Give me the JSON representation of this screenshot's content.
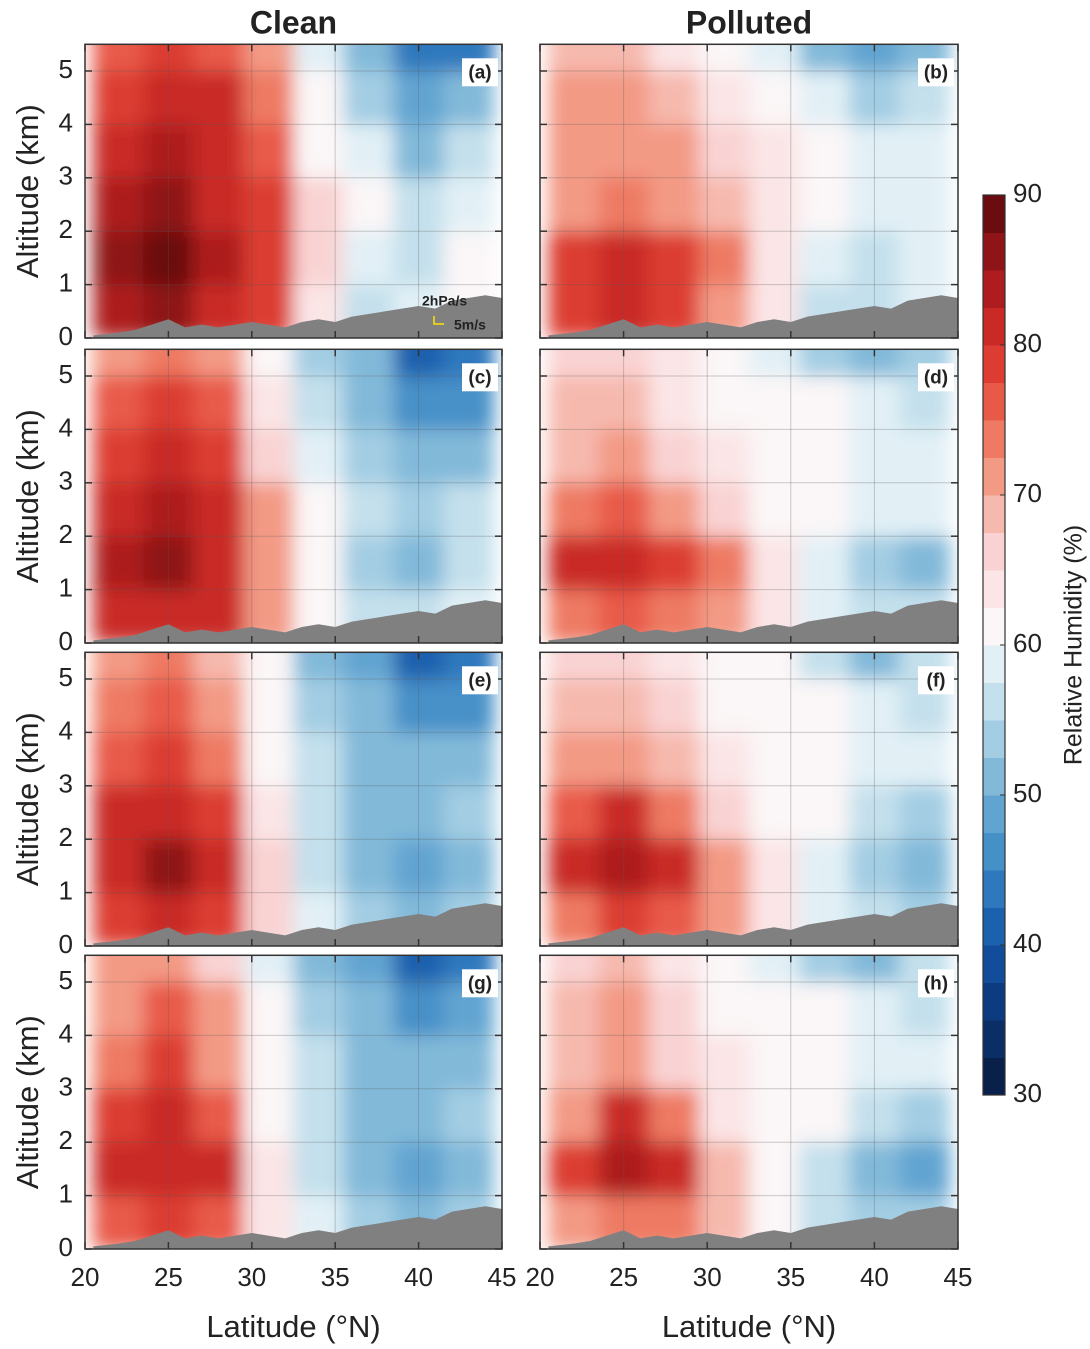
{
  "chart_data": [
    {
      "type": "heatmap",
      "title": "Clean",
      "label": "(a)",
      "ylabel": "Altitude (km)",
      "annotations": [
        "2hPa/s",
        "5m/s"
      ],
      "x": [
        22,
        25,
        28,
        31,
        34,
        37,
        40,
        43
      ],
      "y": [
        0.5,
        1.5,
        2.5,
        3.5,
        4.5,
        5.5
      ],
      "z": [
        [
          84,
          86,
          82,
          78,
          64,
          56,
          58,
          62
        ],
        [
          86,
          88,
          84,
          78,
          66,
          58,
          56,
          60
        ],
        [
          84,
          86,
          82,
          78,
          66,
          60,
          56,
          58
        ],
        [
          80,
          84,
          82,
          76,
          62,
          58,
          52,
          56
        ],
        [
          78,
          82,
          80,
          74,
          60,
          54,
          48,
          50
        ],
        [
          76,
          78,
          76,
          72,
          58,
          52,
          44,
          44
        ]
      ],
      "terrain": {
        "x": [
          20.5,
          22,
          23,
          24,
          25,
          26,
          27,
          28,
          30,
          32,
          33,
          34,
          35,
          36,
          38,
          40,
          41,
          42,
          44,
          45
        ],
        "values": [
          0.05,
          0.1,
          0.15,
          0.25,
          0.35,
          0.2,
          0.25,
          0.2,
          0.3,
          0.2,
          0.3,
          0.35,
          0.3,
          0.4,
          0.5,
          0.6,
          0.55,
          0.7,
          0.8,
          0.75
        ]
      },
      "xlim": [
        20,
        45
      ],
      "xticks": [
        20,
        25,
        30,
        35,
        40,
        45
      ],
      "ylim": [
        0,
        5.5
      ],
      "yticks": [
        0,
        1,
        2,
        3,
        4,
        5
      ],
      "grid": true
    },
    {
      "type": "heatmap",
      "title": "Polluted",
      "label": "(b)",
      "x": [
        22,
        25,
        28,
        31,
        34,
        37,
        40,
        43
      ],
      "y": [
        0.5,
        1.5,
        2.5,
        3.5,
        4.5,
        5.5
      ],
      "z": [
        [
          78,
          80,
          78,
          72,
          64,
          56,
          56,
          58
        ],
        [
          78,
          80,
          78,
          74,
          64,
          58,
          56,
          58
        ],
        [
          72,
          74,
          72,
          68,
          64,
          60,
          58,
          58
        ],
        [
          70,
          72,
          70,
          66,
          63,
          60,
          58,
          58
        ],
        [
          70,
          72,
          68,
          64,
          62,
          58,
          54,
          56
        ],
        [
          68,
          68,
          64,
          62,
          58,
          52,
          48,
          52
        ]
      ],
      "terrain": {
        "x": [
          20.5,
          22,
          23,
          24,
          25,
          26,
          27,
          28,
          30,
          32,
          33,
          34,
          35,
          36,
          38,
          40,
          41,
          42,
          44,
          45
        ],
        "values": [
          0.05,
          0.1,
          0.15,
          0.25,
          0.35,
          0.2,
          0.25,
          0.2,
          0.3,
          0.2,
          0.3,
          0.35,
          0.3,
          0.4,
          0.5,
          0.6,
          0.55,
          0.7,
          0.8,
          0.75
        ]
      },
      "xlim": [
        20,
        45
      ],
      "xticks": [
        20,
        25,
        30,
        35,
        40,
        45
      ],
      "ylim": [
        0,
        5.5
      ],
      "yticks": [
        0,
        1,
        2,
        3,
        4,
        5
      ],
      "grid": true
    },
    {
      "type": "heatmap",
      "label": "(c)",
      "ylabel": "Altitude (km)",
      "x": [
        22,
        25,
        28,
        31,
        34,
        37,
        40,
        43
      ],
      "y": [
        0.5,
        1.5,
        2.5,
        3.5,
        4.5,
        5.5
      ],
      "z": [
        [
          80,
          82,
          80,
          70,
          60,
          56,
          56,
          58
        ],
        [
          84,
          86,
          82,
          72,
          60,
          54,
          52,
          56
        ],
        [
          82,
          84,
          80,
          70,
          60,
          56,
          54,
          56
        ],
        [
          78,
          80,
          78,
          66,
          58,
          54,
          50,
          52
        ],
        [
          76,
          78,
          76,
          64,
          56,
          52,
          46,
          46
        ],
        [
          72,
          74,
          72,
          62,
          54,
          50,
          42,
          44
        ]
      ],
      "terrain": {
        "x": [
          20.5,
          22,
          23,
          24,
          25,
          26,
          27,
          28,
          30,
          32,
          33,
          34,
          35,
          36,
          38,
          40,
          41,
          42,
          44,
          45
        ],
        "values": [
          0.05,
          0.1,
          0.15,
          0.25,
          0.35,
          0.2,
          0.25,
          0.2,
          0.3,
          0.2,
          0.3,
          0.35,
          0.3,
          0.4,
          0.5,
          0.6,
          0.55,
          0.7,
          0.8,
          0.75
        ]
      },
      "xlim": [
        20,
        45
      ],
      "xticks": [
        20,
        25,
        30,
        35,
        40,
        45
      ],
      "ylim": [
        0,
        5.5
      ],
      "yticks": [
        0,
        1,
        2,
        3,
        4,
        5
      ],
      "grid": true
    },
    {
      "type": "heatmap",
      "label": "(d)",
      "x": [
        22,
        25,
        28,
        31,
        34,
        37,
        40,
        43
      ],
      "y": [
        0.5,
        1.5,
        2.5,
        3.5,
        4.5,
        5.5
      ],
      "z": [
        [
          74,
          76,
          74,
          70,
          64,
          58,
          56,
          56
        ],
        [
          80,
          82,
          78,
          74,
          64,
          58,
          54,
          50
        ],
        [
          74,
          76,
          72,
          66,
          62,
          60,
          58,
          58
        ],
        [
          68,
          70,
          66,
          64,
          62,
          60,
          58,
          58
        ],
        [
          68,
          68,
          64,
          62,
          62,
          60,
          58,
          56
        ],
        [
          66,
          66,
          64,
          62,
          58,
          54,
          50,
          54
        ]
      ],
      "terrain": {
        "x": [
          20.5,
          22,
          23,
          24,
          25,
          26,
          27,
          28,
          30,
          32,
          33,
          34,
          35,
          36,
          38,
          40,
          41,
          42,
          44,
          45
        ],
        "values": [
          0.05,
          0.1,
          0.15,
          0.25,
          0.35,
          0.2,
          0.25,
          0.2,
          0.3,
          0.2,
          0.3,
          0.35,
          0.3,
          0.4,
          0.5,
          0.6,
          0.55,
          0.7,
          0.8,
          0.75
        ]
      },
      "xlim": [
        20,
        45
      ],
      "xticks": [
        20,
        25,
        30,
        35,
        40,
        45
      ],
      "ylim": [
        0,
        5.5
      ],
      "yticks": [
        0,
        1,
        2,
        3,
        4,
        5
      ],
      "grid": true
    },
    {
      "type": "heatmap",
      "label": "(e)",
      "ylabel": "Altitude (km)",
      "x": [
        22,
        25,
        28,
        31,
        34,
        37,
        40,
        43
      ],
      "y": [
        0.5,
        1.5,
        2.5,
        3.5,
        4.5,
        5.5
      ],
      "z": [
        [
          78,
          80,
          78,
          66,
          58,
          54,
          52,
          54
        ],
        [
          82,
          86,
          82,
          66,
          56,
          50,
          48,
          52
        ],
        [
          80,
          82,
          78,
          64,
          56,
          52,
          52,
          54
        ],
        [
          76,
          78,
          74,
          62,
          56,
          52,
          50,
          50
        ],
        [
          74,
          76,
          72,
          62,
          54,
          50,
          46,
          46
        ],
        [
          72,
          74,
          68,
          60,
          52,
          48,
          42,
          44
        ]
      ],
      "terrain": {
        "x": [
          20.5,
          22,
          23,
          24,
          25,
          26,
          27,
          28,
          30,
          32,
          33,
          34,
          35,
          36,
          38,
          40,
          41,
          42,
          44,
          45
        ],
        "values": [
          0.05,
          0.1,
          0.15,
          0.25,
          0.35,
          0.2,
          0.25,
          0.2,
          0.3,
          0.2,
          0.3,
          0.35,
          0.3,
          0.4,
          0.5,
          0.6,
          0.55,
          0.7,
          0.8,
          0.75
        ]
      },
      "xlim": [
        20,
        45
      ],
      "xticks": [
        20,
        25,
        30,
        35,
        40,
        45
      ],
      "ylim": [
        0,
        5.5
      ],
      "yticks": [
        0,
        1,
        2,
        3,
        4,
        5
      ],
      "grid": true
    },
    {
      "type": "heatmap",
      "label": "(f)",
      "x": [
        22,
        25,
        28,
        31,
        34,
        37,
        40,
        43
      ],
      "y": [
        0.5,
        1.5,
        2.5,
        3.5,
        4.5,
        5.5
      ],
      "z": [
        [
          74,
          78,
          76,
          70,
          64,
          58,
          56,
          54
        ],
        [
          80,
          84,
          80,
          72,
          64,
          58,
          54,
          50
        ],
        [
          76,
          80,
          74,
          66,
          62,
          60,
          56,
          54
        ],
        [
          70,
          72,
          68,
          64,
          62,
          60,
          58,
          58
        ],
        [
          68,
          68,
          66,
          62,
          62,
          60,
          58,
          56
        ],
        [
          66,
          66,
          64,
          62,
          60,
          56,
          52,
          56
        ]
      ],
      "terrain": {
        "x": [
          20.5,
          22,
          23,
          24,
          25,
          26,
          27,
          28,
          30,
          32,
          33,
          34,
          35,
          36,
          38,
          40,
          41,
          42,
          44,
          45
        ],
        "values": [
          0.05,
          0.1,
          0.15,
          0.25,
          0.35,
          0.2,
          0.25,
          0.2,
          0.3,
          0.2,
          0.3,
          0.35,
          0.3,
          0.4,
          0.5,
          0.6,
          0.55,
          0.7,
          0.8,
          0.75
        ]
      },
      "xlim": [
        20,
        45
      ],
      "xticks": [
        20,
        25,
        30,
        35,
        40,
        45
      ],
      "ylim": [
        0,
        5.5
      ],
      "yticks": [
        0,
        1,
        2,
        3,
        4,
        5
      ],
      "grid": true
    },
    {
      "type": "heatmap",
      "label": "(g)",
      "ylabel": "Altitude (km)",
      "xlabel": "Latitude (°N)",
      "x": [
        22,
        25,
        28,
        31,
        34,
        37,
        40,
        43
      ],
      "y": [
        0.5,
        1.5,
        2.5,
        3.5,
        4.5,
        5.5
      ],
      "z": [
        [
          76,
          78,
          76,
          64,
          58,
          54,
          52,
          54
        ],
        [
          80,
          82,
          80,
          64,
          56,
          50,
          48,
          52
        ],
        [
          78,
          82,
          76,
          62,
          56,
          52,
          52,
          54
        ],
        [
          74,
          78,
          72,
          62,
          56,
          52,
          50,
          50
        ],
        [
          72,
          76,
          70,
          60,
          54,
          50,
          46,
          48
        ],
        [
          70,
          72,
          66,
          58,
          52,
          48,
          42,
          44
        ]
      ],
      "terrain": {
        "x": [
          20.5,
          22,
          23,
          24,
          25,
          26,
          27,
          28,
          30,
          32,
          33,
          34,
          35,
          36,
          38,
          40,
          41,
          42,
          44,
          45
        ],
        "values": [
          0.05,
          0.1,
          0.15,
          0.25,
          0.35,
          0.2,
          0.25,
          0.2,
          0.3,
          0.2,
          0.3,
          0.35,
          0.3,
          0.4,
          0.5,
          0.6,
          0.55,
          0.7,
          0.8,
          0.75
        ]
      },
      "xlim": [
        20,
        45
      ],
      "xticks": [
        20,
        25,
        30,
        35,
        40,
        45
      ],
      "ylim": [
        0,
        5.5
      ],
      "yticks": [
        0,
        1,
        2,
        3,
        4,
        5
      ],
      "grid": true
    },
    {
      "type": "heatmap",
      "label": "(h)",
      "xlabel": "Latitude (°N)",
      "x": [
        22,
        25,
        28,
        31,
        34,
        37,
        40,
        43
      ],
      "y": [
        0.5,
        1.5,
        2.5,
        3.5,
        4.5,
        5.5
      ],
      "z": [
        [
          72,
          74,
          74,
          68,
          62,
          56,
          54,
          54
        ],
        [
          78,
          84,
          80,
          68,
          62,
          56,
          52,
          48
        ],
        [
          72,
          80,
          74,
          64,
          62,
          60,
          56,
          54
        ],
        [
          68,
          72,
          66,
          64,
          62,
          60,
          58,
          58
        ],
        [
          68,
          70,
          66,
          62,
          62,
          60,
          58,
          56
        ],
        [
          66,
          68,
          64,
          60,
          58,
          54,
          50,
          56
        ]
      ],
      "terrain": {
        "x": [
          20.5,
          22,
          23,
          24,
          25,
          26,
          27,
          28,
          30,
          32,
          33,
          34,
          35,
          36,
          38,
          40,
          41,
          42,
          44,
          45
        ],
        "values": [
          0.05,
          0.1,
          0.15,
          0.25,
          0.35,
          0.2,
          0.25,
          0.2,
          0.3,
          0.2,
          0.3,
          0.35,
          0.3,
          0.4,
          0.5,
          0.6,
          0.55,
          0.7,
          0.8,
          0.75
        ]
      },
      "xlim": [
        20,
        45
      ],
      "xticks": [
        20,
        25,
        30,
        35,
        40,
        45
      ],
      "ylim": [
        0,
        5.5
      ],
      "yticks": [
        0,
        1,
        2,
        3,
        4,
        5
      ],
      "grid": true
    },
    {
      "type": "colorbar",
      "label": "Relative Humidity (%)",
      "clim": [
        30,
        90
      ],
      "ticks": [
        30,
        40,
        50,
        60,
        70,
        80,
        90
      ],
      "colors": [
        "#08204a",
        "#0b2e66",
        "#0d3b80",
        "#114d9a",
        "#1c61ae",
        "#2f78bd",
        "#4690c8",
        "#62a4d1",
        "#82b9d9",
        "#a3cde3",
        "#c4e0ec",
        "#e2f0f6",
        "#fbf6f7",
        "#fbe5e6",
        "#f9d3d3",
        "#f6b9ae",
        "#f39a85",
        "#ee7a64",
        "#e85a48",
        "#dc3c31",
        "#c92a26",
        "#ad1d1f",
        "#8e1418",
        "#6b0c10"
      ]
    }
  ]
}
